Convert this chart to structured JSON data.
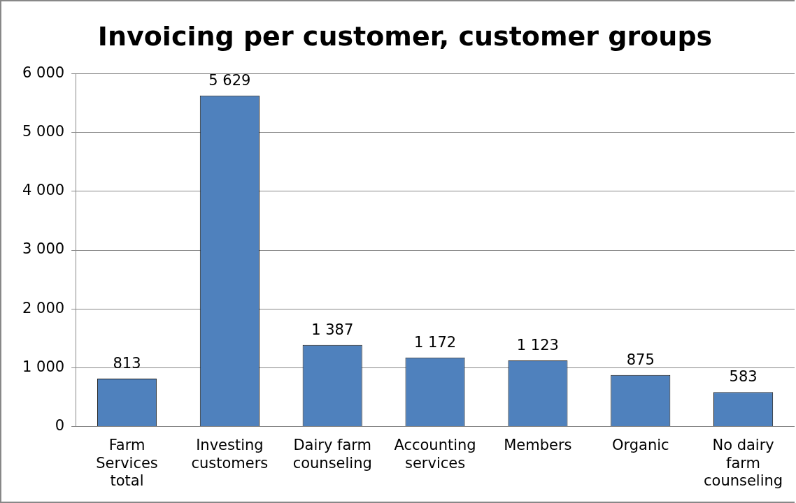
{
  "chart_data": {
    "type": "bar",
    "title": "Invoicing per customer, customer groups",
    "categories": [
      "Farm Services total",
      "Investing customers",
      "Dairy farm counseling",
      "Accounting services",
      "Members",
      "Organic",
      "No dairy farm counseling"
    ],
    "values": [
      813,
      5629,
      1387,
      1172,
      1123,
      875,
      583
    ],
    "value_labels": [
      "813",
      "5 629",
      "1 387",
      "1 172",
      "1 123",
      "875",
      "583"
    ],
    "color": "#4f81bd",
    "ylim": [
      0,
      6000
    ],
    "yticks": [
      {
        "value": 0,
        "label": "0"
      },
      {
        "value": 1000,
        "label": "1 000"
      },
      {
        "value": 2000,
        "label": "2 000"
      },
      {
        "value": 3000,
        "label": "3 000"
      },
      {
        "value": 4000,
        "label": "4 000"
      },
      {
        "value": 5000,
        "label": "5 000"
      },
      {
        "value": 6000,
        "label": "6 000"
      }
    ],
    "grid": "y",
    "legend": false
  }
}
